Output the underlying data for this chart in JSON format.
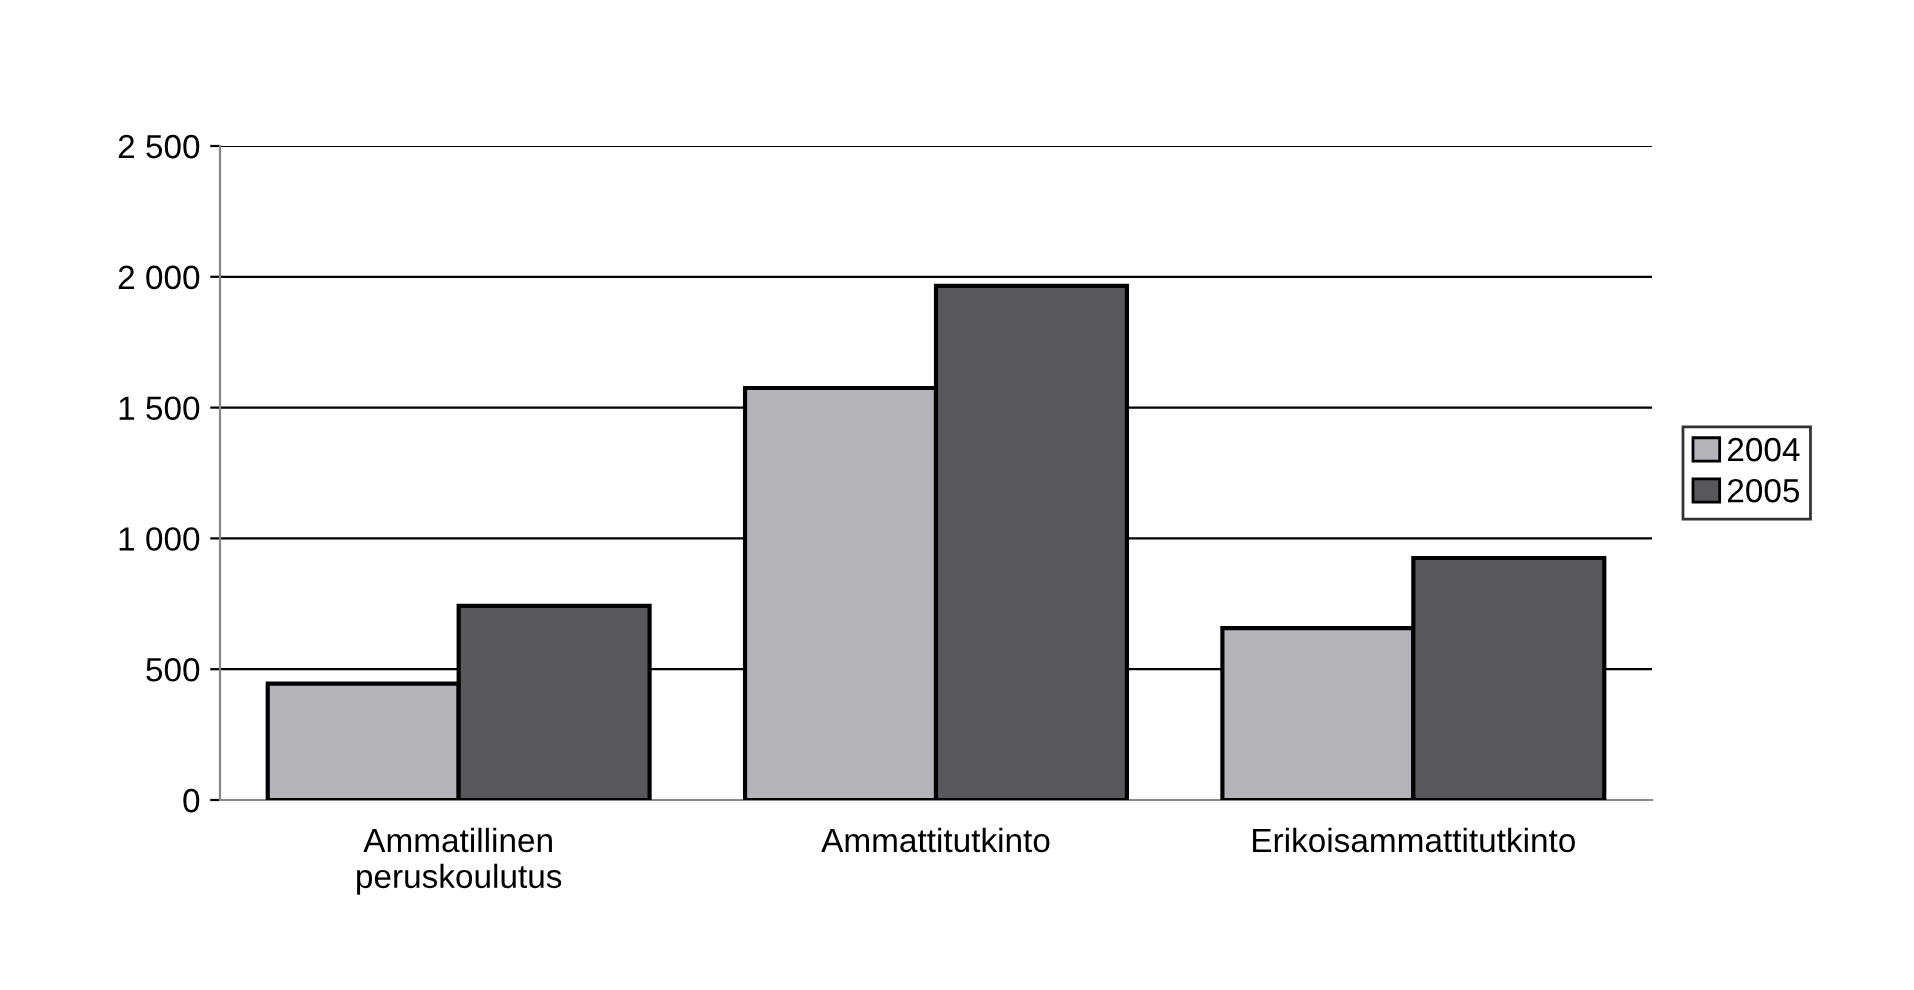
{
  "chart_data": {
    "type": "bar",
    "categories": [
      "Ammatillinen\nperuskoulutus",
      "Ammattitutkinto",
      "Erikoisammattitutkinto"
    ],
    "series": [
      {
        "name": "2004",
        "color": "#b3b3b8",
        "values": [
          445,
          1575,
          657
        ]
      },
      {
        "name": "2005",
        "color": "#58585b",
        "values": [
          742,
          1965,
          925
        ]
      }
    ],
    "ylim": [
      0,
      2500
    ],
    "yticks": [
      0,
      500,
      {
        "value": 1000,
        "label": "1 000"
      },
      {
        "value": 1500,
        "label": "1 500"
      },
      {
        "value": 2000,
        "label": "2 000"
      },
      {
        "value": 2500,
        "label": "2 500"
      }
    ],
    "grid": "y",
    "legend": "right"
  }
}
